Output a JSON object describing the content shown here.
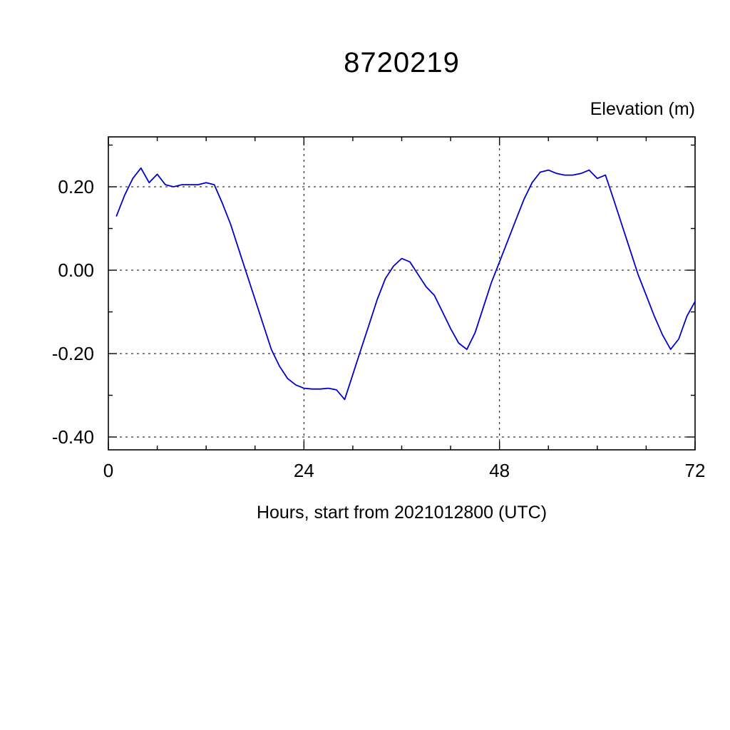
{
  "title": "8720219",
  "right_label": "Elevation (m)",
  "xlabel": "Hours, start from 2021012800 (UTC)",
  "chart_data": {
    "type": "line",
    "title": "8720219",
    "ylabel": "Elevation (m)",
    "xlabel": "Hours, start from 2021012800 (UTC)",
    "line_color": "#0000cc",
    "grid": "dashed, horizontal at labeled y ticks, vertical at x=24 and x=48",
    "legend_position": "none",
    "xlim": [
      0,
      72
    ],
    "ylim": [
      -0.431,
      0.32
    ],
    "xticks": [
      0,
      24,
      48,
      72
    ],
    "xtick_labels": [
      "0",
      "24",
      "48",
      "72"
    ],
    "x_minor_ticks": [
      6,
      12,
      18,
      30,
      36,
      42,
      54,
      60,
      66
    ],
    "yticks": [
      0.2,
      0.0,
      -0.2,
      -0.4
    ],
    "ytick_labels": [
      "0.20",
      "0.00",
      "-0.20",
      "-0.40"
    ],
    "y_minor_ticks": [
      0.3,
      0.1,
      -0.1,
      -0.3
    ],
    "grid_x": [
      24,
      48
    ],
    "grid_y": [
      0.2,
      0.0,
      -0.2,
      -0.4
    ],
    "x": [
      1,
      2,
      3,
      4,
      5,
      6,
      7,
      8,
      9,
      10,
      11,
      12,
      13,
      14,
      15,
      16,
      17,
      18,
      19,
      20,
      21,
      22,
      23,
      24,
      25,
      26,
      27,
      28,
      29,
      30,
      31,
      32,
      33,
      34,
      35,
      36,
      37,
      38,
      39,
      40,
      41,
      42,
      43,
      44,
      45,
      46,
      47,
      48,
      49,
      50,
      51,
      52,
      53,
      54,
      55,
      56,
      57,
      58,
      59,
      60,
      61,
      62,
      63,
      64,
      65,
      66,
      67,
      68,
      69,
      70,
      71,
      72
    ],
    "values": [
      0.13,
      0.18,
      0.22,
      0.245,
      0.21,
      0.23,
      0.205,
      0.2,
      0.205,
      0.205,
      0.205,
      0.21,
      0.205,
      0.16,
      0.11,
      0.05,
      -0.01,
      -0.07,
      -0.13,
      -0.19,
      -0.23,
      -0.26,
      -0.275,
      -0.283,
      -0.285,
      -0.285,
      -0.283,
      -0.287,
      -0.31,
      -0.25,
      -0.19,
      -0.13,
      -0.07,
      -0.02,
      0.01,
      0.028,
      0.02,
      -0.01,
      -0.04,
      -0.06,
      -0.1,
      -0.14,
      -0.175,
      -0.19,
      -0.15,
      -0.09,
      -0.03,
      0.02,
      0.07,
      0.12,
      0.17,
      0.21,
      0.235,
      0.24,
      0.232,
      0.228,
      0.228,
      0.232,
      0.24,
      0.22,
      0.228,
      0.17,
      0.11,
      0.05,
      -0.01,
      -0.06,
      -0.11,
      -0.155,
      -0.19,
      -0.165,
      -0.11,
      -0.075
    ]
  }
}
